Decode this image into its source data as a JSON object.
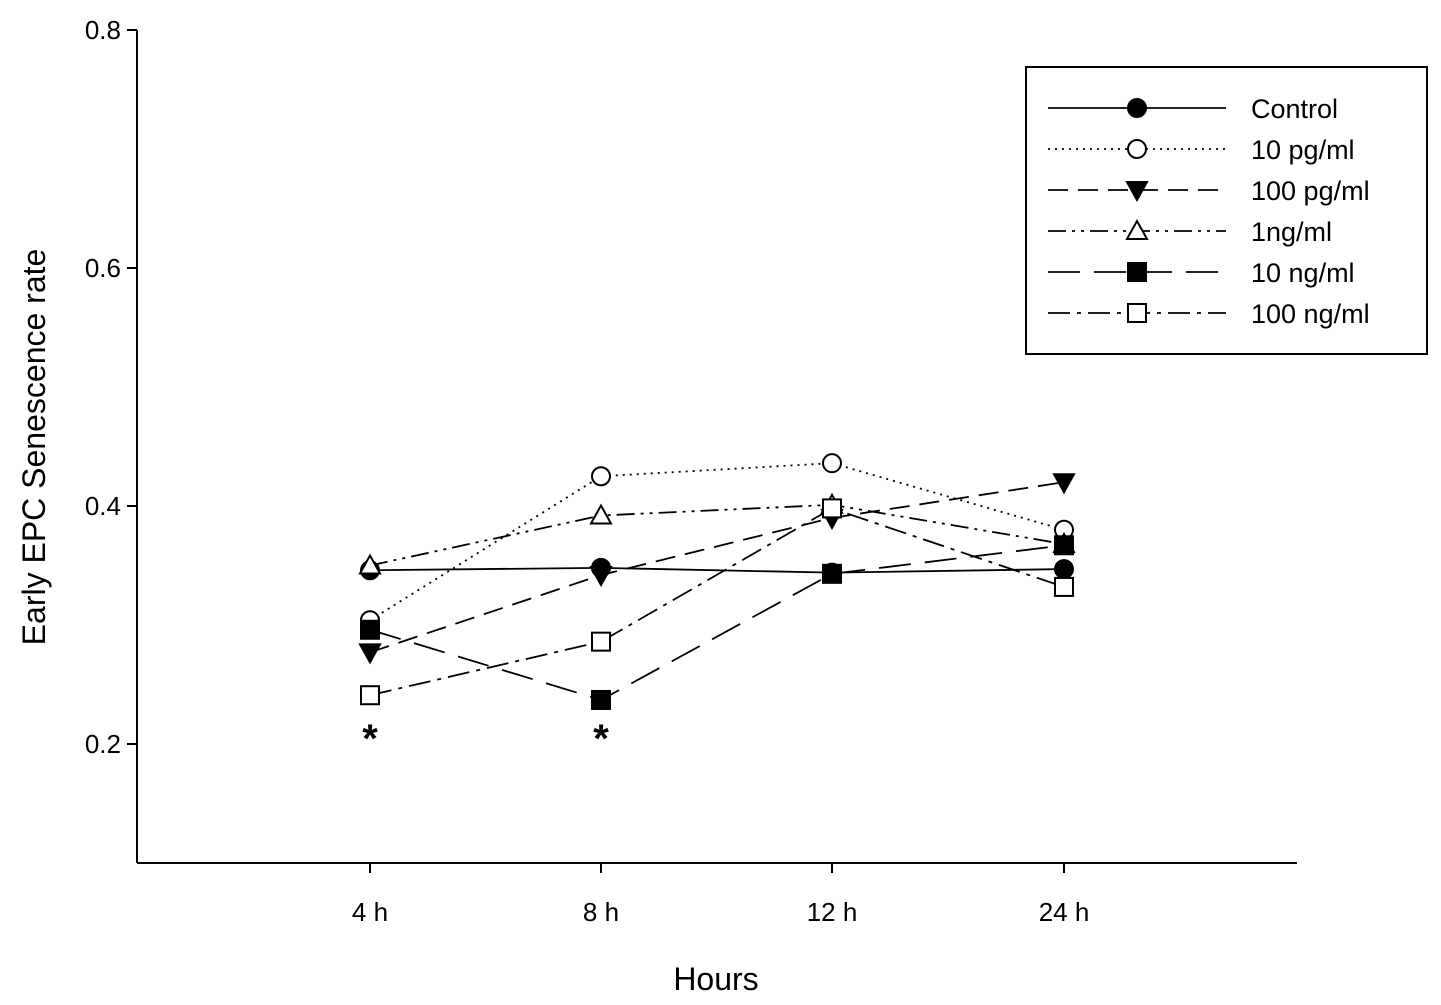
{
  "chart_data": {
    "type": "line",
    "xlabel": "Hours",
    "ylabel": "Early EPC Senescence rate",
    "categories": [
      "4 h",
      "8 h",
      "12 h",
      "24 h"
    ],
    "yticks": [
      "0.2",
      "0.4",
      "0.6",
      "0.8"
    ],
    "ylim": [
      0.1,
      0.8
    ],
    "grid": false,
    "legend_position": "top-right",
    "series": [
      {
        "name": "Control",
        "values": [
          0.346,
          0.348,
          0.344,
          0.347
        ],
        "marker": "circle-filled",
        "dash": "solid"
      },
      {
        "name": "10 pg/ml",
        "values": [
          0.304,
          0.425,
          0.436,
          0.38
        ],
        "marker": "circle-open",
        "dash": "dotted"
      },
      {
        "name": "100 pg/ml",
        "values": [
          0.277,
          0.342,
          0.39,
          0.42
        ],
        "marker": "triangle-down-filled",
        "dash": "dashed"
      },
      {
        "name": "1ng/ml",
        "values": [
          0.35,
          0.392,
          0.401,
          0.368
        ],
        "marker": "triangle-up-open",
        "dash": "dash-dot-dot"
      },
      {
        "name": "10 ng/ml",
        "values": [
          0.296,
          0.237,
          0.343,
          0.367
        ],
        "marker": "square-filled",
        "dash": "long-dash"
      },
      {
        "name": "100 ng/ml",
        "values": [
          0.241,
          0.286,
          0.398,
          0.332
        ],
        "marker": "square-open",
        "dash": "dash-dot"
      }
    ],
    "annotations": [
      {
        "text": "*",
        "category": "4 h",
        "value": 0.2
      },
      {
        "text": "*",
        "category": "8 h",
        "value": 0.2
      }
    ]
  }
}
